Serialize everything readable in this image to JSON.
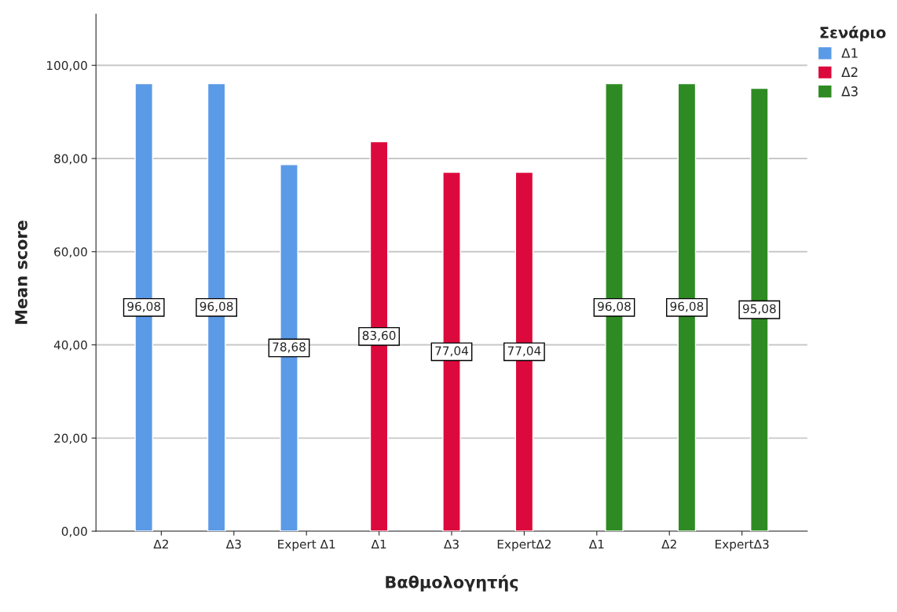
{
  "chart_data": {
    "type": "bar",
    "xlabel": "Βαθμολογητής",
    "ylabel": "Mean score",
    "legend_title": "Σενάριο",
    "categories": [
      "Δ2",
      "Δ3",
      "Expert Δ1",
      "Δ1",
      "Δ3",
      "ExpertΔ2",
      "Δ1",
      "Δ2",
      "ExpertΔ3"
    ],
    "series": [
      {
        "name": "Δ1",
        "color": "#5b9ae6",
        "values": [
          96.08,
          96.08,
          78.68,
          null,
          null,
          null,
          null,
          null,
          null
        ],
        "value_labels": [
          "96,08",
          "96,08",
          "78,68",
          null,
          null,
          null,
          null,
          null,
          null
        ]
      },
      {
        "name": "Δ2",
        "color": "#dc0a3c",
        "values": [
          null,
          null,
          null,
          83.6,
          77.04,
          77.04,
          null,
          null,
          null
        ],
        "value_labels": [
          null,
          null,
          null,
          "83,60",
          "77,04",
          "77,04",
          null,
          null,
          null
        ]
      },
      {
        "name": "Δ3",
        "color": "#2e8b23",
        "values": [
          null,
          null,
          null,
          null,
          null,
          null,
          96.08,
          96.08,
          95.08
        ],
        "value_labels": [
          null,
          null,
          null,
          null,
          null,
          null,
          "96,08",
          "96,08",
          "95,08"
        ]
      }
    ],
    "ylim": [
      0,
      111
    ],
    "yticks": [
      {
        "value": 0,
        "label": "0,00"
      },
      {
        "value": 20,
        "label": "20,00"
      },
      {
        "value": 40,
        "label": "40,00"
      },
      {
        "value": 60,
        "label": "60,00"
      },
      {
        "value": 80,
        "label": "80,00"
      },
      {
        "value": 100,
        "label": "100,00"
      }
    ],
    "grid": "y",
    "legend": "top right"
  }
}
